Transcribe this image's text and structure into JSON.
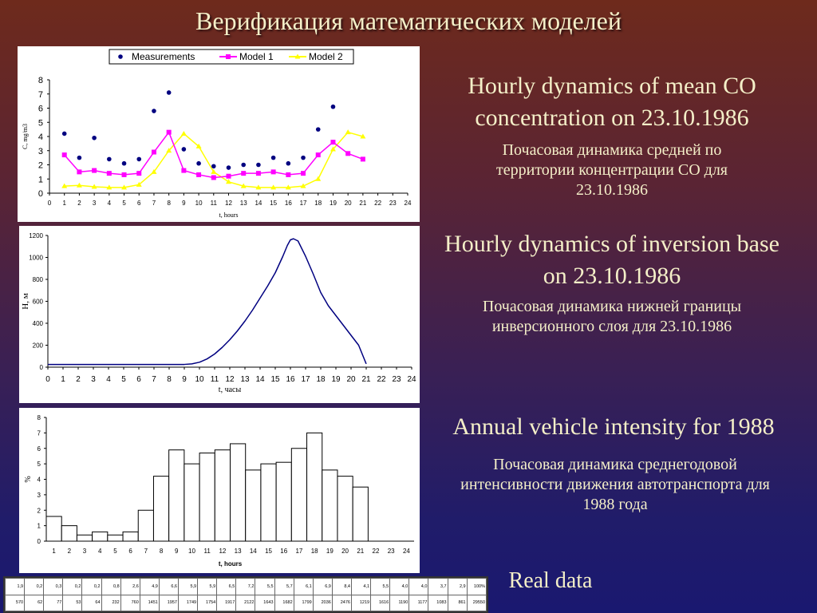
{
  "title": "Верификация математических моделей",
  "captions": {
    "co_en": "Hourly dynamics of mean CO concentration on 23.10.1986",
    "co_ru": "Почасовая динамика средней по территории концентрации CO для 23.10.1986",
    "inv_en": "Hourly dynamics of inversion base on 23.10.1986",
    "inv_ru": "Почасовая динамика нижней границы инверсионного слоя для 23.10.1986",
    "veh_en": "Annual vehicle intensity for 1988",
    "veh_ru": "Почасовая динамика среднегодовой интенсивности движения автотранспорта для 1988 года",
    "real": "Real data"
  },
  "chart_data": [
    {
      "type": "line",
      "xlabel": "t, hours",
      "ylabel": "C, mg/m3",
      "xlim": [
        0,
        24
      ],
      "ylim": [
        0,
        8
      ],
      "xticks": [
        0,
        1,
        2,
        3,
        4,
        5,
        6,
        7,
        8,
        9,
        10,
        11,
        12,
        13,
        14,
        15,
        16,
        17,
        18,
        19,
        20,
        21,
        22,
        23,
        24
      ],
      "yticks": [
        0,
        1,
        2,
        3,
        4,
        5,
        6,
        7,
        8
      ],
      "legend_position": "top",
      "series": [
        {
          "name": "Measurements",
          "style": "scatter",
          "color": "#000080",
          "x": [
            1,
            2,
            3,
            4,
            5,
            6,
            7,
            8,
            9,
            10,
            11,
            12,
            13,
            14,
            15,
            16,
            17,
            18,
            19
          ],
          "values": [
            4.2,
            2.5,
            3.9,
            2.4,
            2.1,
            2.4,
            5.8,
            7.1,
            3.1,
            2.1,
            1.9,
            1.8,
            2.0,
            2.0,
            2.5,
            2.1,
            2.5,
            4.5,
            6.1
          ]
        },
        {
          "name": "Model 1",
          "style": "line-square",
          "color": "#ff00ff",
          "x": [
            1,
            2,
            3,
            4,
            5,
            6,
            7,
            8,
            9,
            10,
            11,
            12,
            13,
            14,
            15,
            16,
            17,
            18,
            19,
            20,
            21
          ],
          "values": [
            2.7,
            1.5,
            1.6,
            1.4,
            1.3,
            1.4,
            2.9,
            4.3,
            1.6,
            1.3,
            1.1,
            1.2,
            1.4,
            1.4,
            1.5,
            1.3,
            1.4,
            2.7,
            3.6,
            2.8,
            2.4
          ]
        },
        {
          "name": "Model 2",
          "style": "line-triangle",
          "color": "#ffff00",
          "x": [
            1,
            2,
            3,
            4,
            5,
            6,
            7,
            8,
            9,
            10,
            11,
            12,
            13,
            14,
            15,
            16,
            17,
            18,
            19,
            20,
            21
          ],
          "values": [
            0.5,
            0.55,
            0.45,
            0.4,
            0.4,
            0.6,
            1.5,
            3.0,
            4.2,
            3.3,
            1.5,
            0.8,
            0.5,
            0.4,
            0.4,
            0.4,
            0.5,
            1.0,
            3.1,
            4.3,
            4.0
          ]
        }
      ]
    },
    {
      "type": "line",
      "xlabel": "t, часы",
      "ylabel": "H, м",
      "xlim": [
        0,
        24
      ],
      "ylim": [
        0,
        1200
      ],
      "xticks": [
        0,
        1,
        2,
        3,
        4,
        5,
        6,
        7,
        8,
        9,
        10,
        11,
        12,
        13,
        14,
        15,
        16,
        17,
        18,
        19,
        20,
        21,
        22,
        23,
        24
      ],
      "yticks": [
        0,
        200,
        400,
        600,
        800,
        1000,
        1200
      ],
      "series": [
        {
          "color": "#000080",
          "x": [
            0,
            1,
            2,
            3,
            4,
            5,
            6,
            7,
            8,
            9,
            9.5,
            10,
            10.5,
            11,
            11.5,
            12,
            12.5,
            13,
            13.5,
            14,
            14.5,
            15,
            15.5,
            15.8,
            16,
            16.2,
            16.5,
            17,
            17.5,
            18,
            18.5,
            19,
            19.5,
            20,
            20.5,
            21
          ],
          "values": [
            25,
            25,
            25,
            25,
            25,
            25,
            25,
            25,
            25,
            25,
            30,
            45,
            75,
            120,
            180,
            250,
            330,
            420,
            520,
            630,
            740,
            860,
            1010,
            1110,
            1160,
            1170,
            1150,
            1010,
            850,
            680,
            560,
            470,
            380,
            290,
            200,
            30
          ]
        }
      ]
    },
    {
      "type": "bar",
      "xlabel": "t, hours",
      "ylabel": "%",
      "ylim": [
        0,
        8
      ],
      "yticks": [
        0,
        1,
        2,
        3,
        4,
        5,
        6,
        7,
        8
      ],
      "categories": [
        "1",
        "2",
        "3",
        "4",
        "5",
        "6",
        "7",
        "8",
        "9",
        "10",
        "11",
        "12",
        "13",
        "14",
        "15",
        "16",
        "17",
        "18",
        "19",
        "20",
        "21",
        "22",
        "23",
        "24"
      ],
      "values": [
        1.6,
        1.0,
        0.4,
        0.6,
        0.4,
        0.6,
        2.0,
        4.2,
        5.9,
        5.0,
        5.7,
        5.9,
        6.3,
        4.6,
        5.0,
        5.1,
        6.0,
        7.0,
        4.6,
        4.2,
        3.5,
        0,
        0,
        0
      ]
    }
  ],
  "table": {
    "percent_row": [
      "1,9",
      "0,2",
      "0,3",
      "0,2",
      "0,2",
      "0,8",
      "2,6",
      "4,9",
      "6,6",
      "5,9",
      "5,9",
      "6,5",
      "7,2",
      "5,5",
      "5,7",
      "6,1",
      "6,9",
      "8,4",
      "4,1",
      "5,5",
      "4,0",
      "4,0",
      "3,7",
      "2,9",
      "100%"
    ],
    "count_row": [
      "570",
      "62",
      "77",
      "53",
      "64",
      "232",
      "760",
      "1451",
      "1957",
      "1749",
      "1754",
      "1917",
      "2122",
      "1643",
      "1682",
      "1799",
      "2036",
      "2476",
      "1219",
      "1616",
      "1190",
      "1177",
      "1083",
      "861",
      "29550"
    ]
  }
}
